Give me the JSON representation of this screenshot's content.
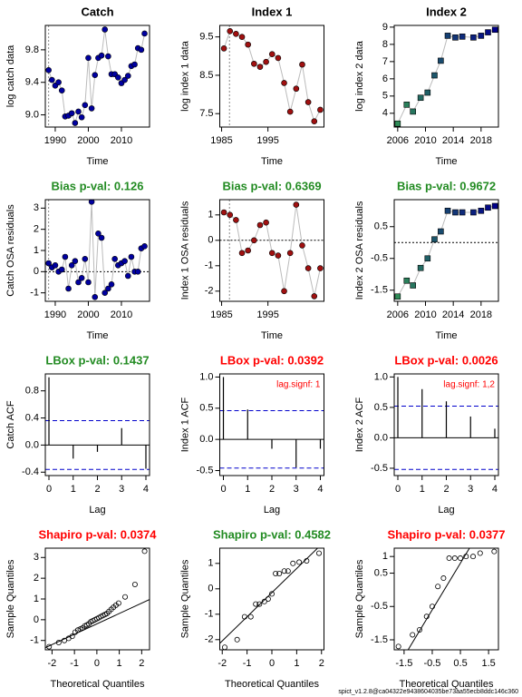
{
  "chart_data": [
    {
      "type": "line",
      "title": "Catch",
      "title_color": "#000000",
      "x_label": "Time",
      "y_label": "log catch data",
      "x": [
        1988,
        1989,
        1990,
        1991,
        1992,
        1993,
        1994,
        1995,
        1996,
        1997,
        1998,
        1999,
        2000,
        2001,
        2002,
        2003,
        2004,
        2005,
        2006,
        2007,
        2008,
        2009,
        2010,
        2011,
        2012,
        2013,
        2014,
        2015,
        2016,
        2017
      ],
      "values": [
        9.55,
        9.43,
        9.36,
        9.4,
        9.3,
        8.98,
        8.99,
        9.02,
        8.9,
        9.04,
        8.97,
        9.12,
        9.7,
        9.08,
        9.49,
        9.7,
        9.73,
        10.05,
        9.72,
        9.5,
        9.5,
        9.46,
        9.39,
        9.43,
        9.48,
        9.6,
        9.62,
        9.82,
        9.8,
        10.0
      ],
      "colors": [
        "#0000a0"
      ],
      "marker": "circle",
      "vline": 1988,
      "xlim": [
        1987,
        2018.5
      ],
      "ylim": [
        8.85,
        10.1
      ],
      "xticks": [
        1990,
        2000,
        2010
      ],
      "yticks": [
        {
          "value": 9.0,
          "label": "9.0"
        },
        9.4,
        9.8
      ]
    },
    {
      "type": "line",
      "title": "Index 1",
      "title_color": "#000000",
      "x_label": "Time",
      "y_label": "log index 1 data",
      "x": [
        1985.5,
        1986.8,
        1988.1,
        1989.4,
        1990.7,
        1992,
        1993.3,
        1994.6,
        1995.9,
        1997.2,
        1998.5,
        1999.8,
        2001.1,
        2002.4,
        2003.7,
        2005,
        2006.3
      ],
      "values": [
        9.2,
        9.65,
        9.58,
        9.5,
        9.3,
        8.8,
        8.72,
        8.85,
        9.05,
        8.95,
        8.3,
        7.55,
        8.15,
        8.78,
        7.8,
        7.3,
        7.6
      ],
      "colors": [
        "#a01010"
      ],
      "marker": "circle",
      "vline": 1986.7,
      "xlim": [
        1984.6,
        2007.1
      ],
      "ylim": [
        7.15,
        9.8
      ],
      "xticks": [
        1985,
        1995
      ],
      "yticks": [
        7.5,
        8.5,
        9.5
      ]
    },
    {
      "type": "line",
      "title": "Index 2",
      "title_color": "#000000",
      "x_label": "Time",
      "y_label": "log index 2 data",
      "x": [
        2006,
        2007.3,
        2008.2,
        2009.3,
        2010.3,
        2011.3,
        2012.2,
        2013.2,
        2014.3,
        2015.3,
        2016.9,
        2018,
        2019,
        2020
      ],
      "values": [
        3.4,
        4.5,
        4.1,
        4.9,
        5.2,
        6.2,
        7.05,
        8.5,
        8.4,
        8.45,
        8.4,
        8.5,
        8.7,
        8.85
      ],
      "colors": [
        "#2e8b57",
        "#00008b"
      ],
      "marker": "square",
      "xlim": [
        2005.5,
        2020.5
      ],
      "ylim": [
        3.2,
        9.1
      ],
      "xticks": [
        2006,
        2010,
        2014,
        2018
      ],
      "yticks": [
        4,
        5,
        6,
        7,
        8,
        9
      ]
    },
    {
      "type": "line",
      "title": "Bias p-val: 0.126",
      "title_color": "#228b22",
      "x_label": "Time",
      "y_label": "Catch OSA residuals",
      "x": [
        1988,
        1989,
        1990,
        1991,
        1992,
        1993,
        1994,
        1995,
        1996,
        1997,
        1998,
        1999,
        2000,
        2001,
        2002,
        2003,
        2004,
        2005,
        2006,
        2007,
        2008,
        2009,
        2010,
        2011,
        2012,
        2013,
        2014,
        2015,
        2016,
        2017
      ],
      "values": [
        0.4,
        0.2,
        0.3,
        0.0,
        0.1,
        0.7,
        -0.8,
        0.3,
        0.5,
        -0.5,
        -0.3,
        0.6,
        -0.5,
        3.3,
        -1.2,
        1.8,
        1.6,
        -1.0,
        -0.8,
        -0.6,
        0.6,
        0.3,
        0.4,
        0.5,
        -0.2,
        0.7,
        0.0,
        0.0,
        1.1,
        1.2
      ],
      "colors": [
        "#0000a0"
      ],
      "marker": "circle",
      "vline": 1988,
      "hline": 0,
      "xlim": [
        1987,
        2018.5
      ],
      "ylim": [
        -1.4,
        3.4
      ],
      "xticks": [
        1990,
        2000,
        2010
      ],
      "yticks": [
        -1,
        0,
        1,
        2,
        3
      ]
    },
    {
      "type": "line",
      "title": "Bias p-val: 0.6369",
      "title_color": "#228b22",
      "x_label": "Time",
      "y_label": "Index 1 OSA residuals",
      "x": [
        1985.5,
        1986.8,
        1988.1,
        1989.4,
        1990.7,
        1992,
        1993.3,
        1994.6,
        1995.9,
        1997.2,
        1998.5,
        1999.8,
        2001.1,
        2002.4,
        2003.7,
        2005,
        2006.3
      ],
      "values": [
        1.1,
        1.0,
        0.8,
        -0.5,
        -0.4,
        0.0,
        0.6,
        0.7,
        -0.5,
        -0.6,
        -2.0,
        -0.5,
        1.4,
        -0.2,
        -1.1,
        -2.2,
        -1.1
      ],
      "colors": [
        "#a01010"
      ],
      "marker": "circle",
      "vline": 1986.7,
      "hline": 0,
      "xlim": [
        1984.6,
        2007.1
      ],
      "ylim": [
        -2.4,
        1.6
      ],
      "xticks": [
        1985,
        1995
      ],
      "yticks": [
        -2,
        -1,
        0,
        1
      ]
    },
    {
      "type": "line",
      "title": "Bias p-val: 0.9672",
      "title_color": "#228b22",
      "x_label": "Time",
      "y_label": "Index 2 OSA residuals",
      "x": [
        2006,
        2007.3,
        2008.2,
        2009.3,
        2010.3,
        2011.3,
        2012.2,
        2013.2,
        2014.3,
        2015.3,
        2016.9,
        2018,
        2019,
        2020
      ],
      "values": [
        -1.7,
        -1.2,
        -1.35,
        -0.8,
        -0.5,
        0.1,
        0.35,
        1.0,
        0.95,
        0.95,
        0.95,
        1.0,
        1.1,
        1.15
      ],
      "colors": [
        "#2e8b57",
        "#00008b"
      ],
      "marker": "square",
      "hline": 0,
      "xlim": [
        2005.5,
        2020.5
      ],
      "ylim": [
        -1.85,
        1.35
      ],
      "xticks": [
        2006,
        2010,
        2014,
        2018
      ],
      "yticks": [
        -1.5,
        -0.5,
        0.5
      ]
    },
    {
      "type": "bar",
      "title": "LBox p-val: 0.1437",
      "title_color": "#228b22",
      "x_label": "Lag",
      "y_label": "Catch ACF",
      "x": [
        0,
        1,
        2,
        3,
        4
      ],
      "values": [
        1,
        -0.2,
        -0.1,
        0.25,
        -0.35
      ],
      "conf_lines": [
        -0.36,
        0.36
      ],
      "xlim": [
        -0.15,
        4.15
      ],
      "ylim": [
        -0.45,
        1.05
      ],
      "xticks": [
        0,
        1,
        2,
        3,
        4
      ],
      "yticks": [
        -0.4,
        {
          "value": 0,
          "label": "0.0"
        },
        0.4,
        0.8
      ]
    },
    {
      "type": "bar",
      "title": "LBox p-val: 0.0392",
      "title_color": "#ff0000",
      "x_label": "Lag",
      "y_label": "Index 1 ACF",
      "annotation": "lag.signf: 1",
      "x": [
        0,
        1,
        2,
        3,
        4
      ],
      "values": [
        1,
        0.48,
        -0.15,
        -0.45,
        -0.15
      ],
      "conf_lines": [
        -0.46,
        0.46
      ],
      "xlim": [
        -0.15,
        4.15
      ],
      "ylim": [
        -0.58,
        1.05
      ],
      "xticks": [
        0,
        1,
        2,
        3,
        4
      ],
      "yticks": [
        -0.5,
        {
          "value": 0,
          "label": "0.0"
        },
        0.5,
        {
          "value": 1,
          "label": "1.0"
        }
      ]
    },
    {
      "type": "bar",
      "title": "LBox p-val: 0.0026",
      "title_color": "#ff0000",
      "x_label": "Lag",
      "y_label": "Index 2 ACF",
      "annotation": "lag.signf: 1,2",
      "x": [
        0,
        1,
        2,
        3,
        4
      ],
      "values": [
        1,
        0.8,
        0.6,
        0.35,
        0.15
      ],
      "conf_lines": [
        -0.52,
        0.52
      ],
      "xlim": [
        -0.15,
        4.15
      ],
      "ylim": [
        -0.62,
        1.05
      ],
      "xticks": [
        0,
        1,
        2,
        3,
        4
      ],
      "yticks": [
        -0.5,
        {
          "value": 0,
          "label": "0.0"
        },
        0.5,
        {
          "value": 1,
          "label": "1.0"
        }
      ]
    },
    {
      "type": "scatter",
      "title": "Shapiro p-val: 0.0374",
      "title_color": "#ff0000",
      "x_label": "Theoretical Quantiles",
      "y_label": "Sample Quantiles",
      "x": [
        -2.13,
        -1.7,
        -1.45,
        -1.26,
        -1.1,
        -0.97,
        -0.85,
        -0.74,
        -0.64,
        -0.54,
        -0.45,
        -0.36,
        -0.27,
        -0.18,
        -0.09,
        0,
        0.09,
        0.18,
        0.27,
        0.36,
        0.45,
        0.54,
        0.64,
        0.74,
        0.85,
        0.97,
        1.26,
        1.7,
        2.13
      ],
      "values": [
        -1.3,
        -1.1,
        -1.0,
        -0.9,
        -0.8,
        -0.6,
        -0.5,
        -0.45,
        -0.4,
        -0.3,
        -0.25,
        -0.2,
        -0.1,
        -0.05,
        0.0,
        0.05,
        0.1,
        0.15,
        0.2,
        0.25,
        0.3,
        0.4,
        0.5,
        0.6,
        0.7,
        0.8,
        1.1,
        1.7,
        3.3
      ],
      "qqline": {
        "intercept": -0.2,
        "slope": 0.5
      },
      "xlim": [
        -2.3,
        2.35
      ],
      "ylim": [
        -1.45,
        3.45
      ],
      "xticks": [
        -2,
        -1,
        0,
        1,
        2
      ],
      "yticks": [
        -1,
        0,
        1,
        2,
        3
      ]
    },
    {
      "type": "scatter",
      "title": "Shapiro p-val: 0.4582",
      "title_color": "#228b22",
      "x_label": "Theoretical Quantiles",
      "y_label": "Sample Quantiles",
      "x": [
        -1.9,
        -1.4,
        -1.1,
        -0.85,
        -0.65,
        -0.5,
        -0.3,
        -0.15,
        0,
        0.15,
        0.3,
        0.5,
        0.65,
        0.85,
        1.1,
        1.4,
        1.9
      ],
      "values": [
        -2.3,
        -2.0,
        -1.1,
        -1.1,
        -0.6,
        -0.6,
        -0.5,
        -0.4,
        -0.2,
        0.6,
        0.6,
        0.7,
        0.7,
        1.0,
        1.05,
        1.1,
        1.4
      ],
      "qqline": {
        "intercept": -0.15,
        "slope": 0.95
      },
      "xlim": [
        -2.1,
        2.1
      ],
      "ylim": [
        -2.4,
        1.6
      ],
      "xticks": [
        -2,
        -1,
        0,
        1,
        2
      ],
      "yticks": [
        -2,
        -1,
        0,
        1
      ]
    },
    {
      "type": "scatter",
      "title": "Shapiro p-val: 0.0377",
      "title_color": "#ff0000",
      "x_label": "Theoretical Quantiles",
      "y_label": "Sample Quantiles",
      "x": [
        -1.7,
        -1.2,
        -0.95,
        -0.7,
        -0.5,
        -0.3,
        -0.1,
        0.1,
        0.3,
        0.5,
        0.7,
        0.95,
        1.2,
        1.7
      ],
      "values": [
        -1.7,
        -1.35,
        -1.2,
        -0.8,
        -0.5,
        0.1,
        0.35,
        0.95,
        0.95,
        0.95,
        1.0,
        1.0,
        1.1,
        1.15
      ],
      "qqline": {
        "intercept": 0.1,
        "slope": 1.4
      },
      "xlim": [
        -1.85,
        1.85
      ],
      "ylim": [
        -1.8,
        1.25
      ],
      "xticks": [
        -1.5,
        -0.5,
        0.5,
        1.5
      ],
      "yticks": [
        -1.5,
        -0.5,
        0.5,
        1.0
      ]
    }
  ],
  "footer": "spict_v1.2.8@ca04322e9438604035be73aa55ecb8ddc146c360"
}
